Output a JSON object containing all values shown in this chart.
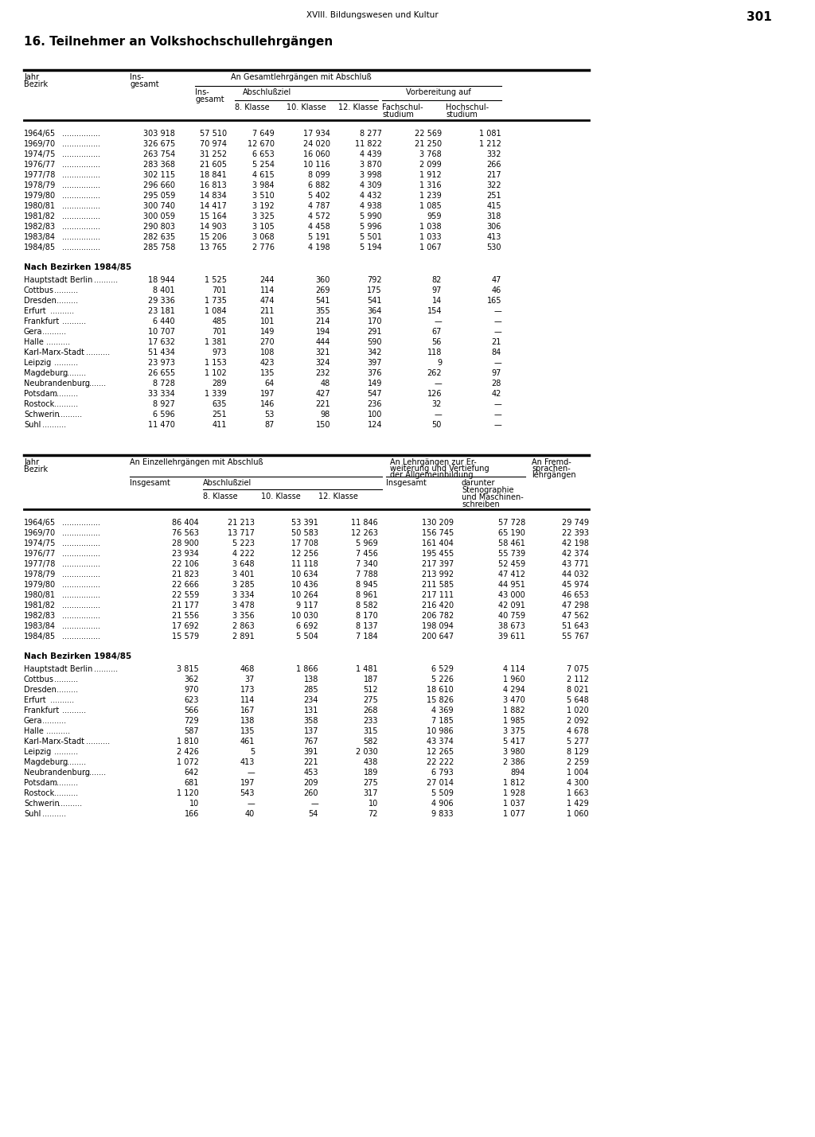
{
  "page_header": "XVIII. Bildungswesen und Kultur",
  "page_number": "301",
  "title": "16. Teilnehmer an Volkshochschullehrgängen",
  "background_color": "#ffffff",
  "table1_years": [
    [
      "1964/65",
      "303 918",
      "57 510",
      "7 649",
      "17 934",
      "8 277",
      "22 569",
      "1 081"
    ],
    [
      "1969/70",
      "326 675",
      "70 974",
      "12 670",
      "24 020",
      "11 822",
      "21 250",
      "1 212"
    ],
    [
      "1974/75",
      "263 754",
      "31 252",
      "6 653",
      "16 060",
      "4 439",
      "3 768",
      "332"
    ],
    [
      "1976/77",
      "283 368",
      "21 605",
      "5 254",
      "10 116",
      "3 870",
      "2 099",
      "266"
    ],
    [
      "1977/78",
      "302 115",
      "18 841",
      "4 615",
      "8 099",
      "3 998",
      "1 912",
      "217"
    ],
    [
      "1978/79",
      "296 660",
      "16 813",
      "3 984",
      "6 882",
      "4 309",
      "1 316",
      "322"
    ],
    [
      "1979/80",
      "295 059",
      "14 834",
      "3 510",
      "5 402",
      "4 432",
      "1 239",
      "251"
    ],
    [
      "1980/81",
      "300 740",
      "14 417",
      "3 192",
      "4 787",
      "4 938",
      "1 085",
      "415"
    ],
    [
      "1981/82",
      "300 059",
      "15 164",
      "3 325",
      "4 572",
      "5 990",
      "959",
      "318"
    ],
    [
      "1982/83",
      "290 803",
      "14 903",
      "3 105",
      "4 458",
      "5 996",
      "1 038",
      "306"
    ],
    [
      "1983/84",
      "282 635",
      "15 206",
      "3 068",
      "5 191",
      "5 501",
      "1 033",
      "413"
    ],
    [
      "1984/85",
      "285 758",
      "13 765",
      "2 776",
      "4 198",
      "5 194",
      "1 067",
      "530"
    ]
  ],
  "table1_bezirke": [
    [
      "Hauptstadt Berlin",
      "18 944",
      "1 525",
      "244",
      "360",
      "792",
      "82",
      "47"
    ],
    [
      "Cottbus",
      "8 401",
      "701",
      "114",
      "269",
      "175",
      "97",
      "46"
    ],
    [
      "Dresden",
      "29 336",
      "1 735",
      "474",
      "541",
      "541",
      "14",
      "165"
    ],
    [
      "Erfurt",
      "23 181",
      "1 084",
      "211",
      "355",
      "364",
      "154",
      "—"
    ],
    [
      "Frankfurt",
      "6 440",
      "485",
      "101",
      "214",
      "170",
      "—",
      "—"
    ],
    [
      "Gera",
      "10 707",
      "701",
      "149",
      "194",
      "291",
      "67",
      "—"
    ],
    [
      "Halle",
      "17 632",
      "1 381",
      "270",
      "444",
      "590",
      "56",
      "21"
    ],
    [
      "Karl-Marx-Stadt",
      "51 434",
      "973",
      "108",
      "321",
      "342",
      "118",
      "84"
    ],
    [
      "Leipzig",
      "23 973",
      "1 153",
      "423",
      "324",
      "397",
      "9",
      "—"
    ],
    [
      "Magdeburg",
      "26 655",
      "1 102",
      "135",
      "232",
      "376",
      "262",
      "97"
    ],
    [
      "Neubrandenburg",
      "8 728",
      "289",
      "64",
      "48",
      "149",
      "—",
      "28"
    ],
    [
      "Potsdam",
      "33 334",
      "1 339",
      "197",
      "427",
      "547",
      "126",
      "42"
    ],
    [
      "Rostock",
      "8 927",
      "635",
      "146",
      "221",
      "236",
      "32",
      "—"
    ],
    [
      "Schwerin",
      "6 596",
      "251",
      "53",
      "98",
      "100",
      "—",
      "—"
    ],
    [
      "Suhl",
      "11 470",
      "411",
      "87",
      "150",
      "124",
      "50",
      "—"
    ]
  ],
  "table2_years": [
    [
      "1964/65",
      "86 404",
      "21 213",
      "53 391",
      "11 846",
      "130 209",
      "57 728",
      "29 749"
    ],
    [
      "1969/70",
      "76 563",
      "13 717",
      "50 583",
      "12 263",
      "156 745",
      "65 190",
      "22 393"
    ],
    [
      "1974/75",
      "28 900",
      "5 223",
      "17 708",
      "5 969",
      "161 404",
      "58 461",
      "42 198"
    ],
    [
      "1976/77",
      "23 934",
      "4 222",
      "12 256",
      "7 456",
      "195 455",
      "55 739",
      "42 374"
    ],
    [
      "1977/78",
      "22 106",
      "3 648",
      "11 118",
      "7 340",
      "217 397",
      "52 459",
      "43 771"
    ],
    [
      "1978/79",
      "21 823",
      "3 401",
      "10 634",
      "7 788",
      "213 992",
      "47 412",
      "44 032"
    ],
    [
      "1979/80",
      "22 666",
      "3 285",
      "10 436",
      "8 945",
      "211 585",
      "44 951",
      "45 974"
    ],
    [
      "1980/81",
      "22 559",
      "3 334",
      "10 264",
      "8 961",
      "217 111",
      "43 000",
      "46 653"
    ],
    [
      "1981/82",
      "21 177",
      "3 478",
      "9 117",
      "8 582",
      "216 420",
      "42 091",
      "47 298"
    ],
    [
      "1982/83",
      "21 556",
      "3 356",
      "10 030",
      "8 170",
      "206 782",
      "40 759",
      "47 562"
    ],
    [
      "1983/84",
      "17 692",
      "2 863",
      "6 692",
      "8 137",
      "198 094",
      "38 673",
      "51 643"
    ],
    [
      "1984/85",
      "15 579",
      "2 891",
      "5 504",
      "7 184",
      "200 647",
      "39 611",
      "55 767"
    ]
  ],
  "table2_bezirke": [
    [
      "Hauptstadt Berlin",
      "3 815",
      "468",
      "1 866",
      "1 481",
      "6 529",
      "4 114",
      "7 075"
    ],
    [
      "Cottbus",
      "362",
      "37",
      "138",
      "187",
      "5 226",
      "1 960",
      "2 112"
    ],
    [
      "Dresden",
      "970",
      "173",
      "285",
      "512",
      "18 610",
      "4 294",
      "8 021"
    ],
    [
      "Erfurt",
      "623",
      "114",
      "234",
      "275",
      "15 826",
      "3 470",
      "5 648"
    ],
    [
      "Frankfurt",
      "566",
      "167",
      "131",
      "268",
      "4 369",
      "1 882",
      "1 020"
    ],
    [
      "Gera",
      "729",
      "138",
      "358",
      "233",
      "7 185",
      "1 985",
      "2 092"
    ],
    [
      "Halle",
      "587",
      "135",
      "137",
      "315",
      "10 986",
      "3 375",
      "4 678"
    ],
    [
      "Karl-Marx-Stadt",
      "1 810",
      "461",
      "767",
      "582",
      "43 374",
      "5 417",
      "5 277"
    ],
    [
      "Leipzig",
      "2 426",
      "5",
      "391",
      "2 030",
      "12 265",
      "3 980",
      "8 129"
    ],
    [
      "Magdeburg",
      "1 072",
      "413",
      "221",
      "438",
      "22 222",
      "2 386",
      "2 259"
    ],
    [
      "Neubrandenburg",
      "642",
      "—",
      "453",
      "189",
      "6 793",
      "894",
      "1 004"
    ],
    [
      "Potsdam",
      "681",
      "197",
      "209",
      "275",
      "27 014",
      "1 812",
      "4 300"
    ],
    [
      "Rostock",
      "1 120",
      "543",
      "260",
      "317",
      "5 509",
      "1 928",
      "1 663"
    ],
    [
      "Schwerin",
      "10",
      "—",
      "—",
      "10",
      "4 906",
      "1 037",
      "1 429"
    ],
    [
      "Suhl",
      "166",
      "40",
      "54",
      "72",
      "9 833",
      "1 077",
      "1 060"
    ]
  ]
}
